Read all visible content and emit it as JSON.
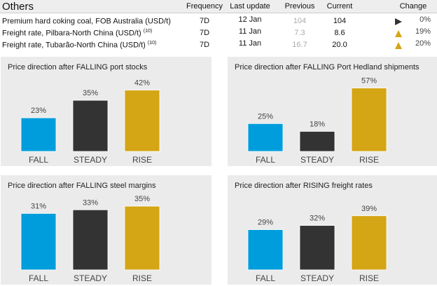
{
  "table": {
    "title": "Others",
    "headers": {
      "frequency": "Frequency",
      "last_update": "Last update",
      "previous": "Previous",
      "current": "Current",
      "change": "Change"
    },
    "rows": [
      {
        "name": "Premium hard coking coal, FOB Australia (USD/t)",
        "note": "",
        "frequency": "7D",
        "last_update": "12 Jan",
        "previous": "104",
        "current": "104",
        "direction": "flat",
        "change": "0%"
      },
      {
        "name": "Freight rate, Pilbara-North China (USD/t)",
        "note": "(10)",
        "frequency": "7D",
        "last_update": "11 Jan",
        "previous": "7.3",
        "current": "8.6",
        "direction": "up",
        "change": "19%"
      },
      {
        "name": "Freight rate, Tubarão-North China (USD/t)",
        "note": "(10)",
        "frequency": "7D",
        "last_update": "11 Jan",
        "previous": "16.7",
        "current": "20.0",
        "direction": "up",
        "change": "20%"
      }
    ],
    "colors": {
      "flat": "#333333",
      "up": "#d4a515"
    }
  },
  "chart_data": [
    {
      "type": "bar",
      "title": "Price direction after FALLING port stocks",
      "categories": [
        "FALL",
        "STEADY",
        "RISE"
      ],
      "values": [
        23,
        35,
        42
      ],
      "labels": [
        "23%",
        "35%",
        "42%"
      ],
      "ylim": [
        0,
        48
      ]
    },
    {
      "type": "bar",
      "title": "Price direction after FALLING Port Hedland shipments",
      "categories": [
        "FALL",
        "STEADY",
        "RISE"
      ],
      "values": [
        25,
        18,
        57
      ],
      "labels": [
        "25%",
        "18%",
        "57%"
      ],
      "ylim": [
        0,
        63
      ]
    },
    {
      "type": "bar",
      "title": "Price direction after FALLING steel margins",
      "categories": [
        "FALL",
        "STEADY",
        "RISE"
      ],
      "values": [
        31,
        33,
        35
      ],
      "labels": [
        "31%",
        "33%",
        "35%"
      ],
      "ylim": [
        0,
        38.5
      ]
    },
    {
      "type": "bar",
      "title": "Price direction after RISING freight rates",
      "categories": [
        "FALL",
        "STEADY",
        "RISE"
      ],
      "values": [
        29,
        32,
        39
      ],
      "labels": [
        "29%",
        "32%",
        "39%"
      ],
      "ylim": [
        0,
        50.5
      ]
    }
  ],
  "bar_colors": [
    "#009ddc",
    "#333333",
    "#d4a515"
  ]
}
